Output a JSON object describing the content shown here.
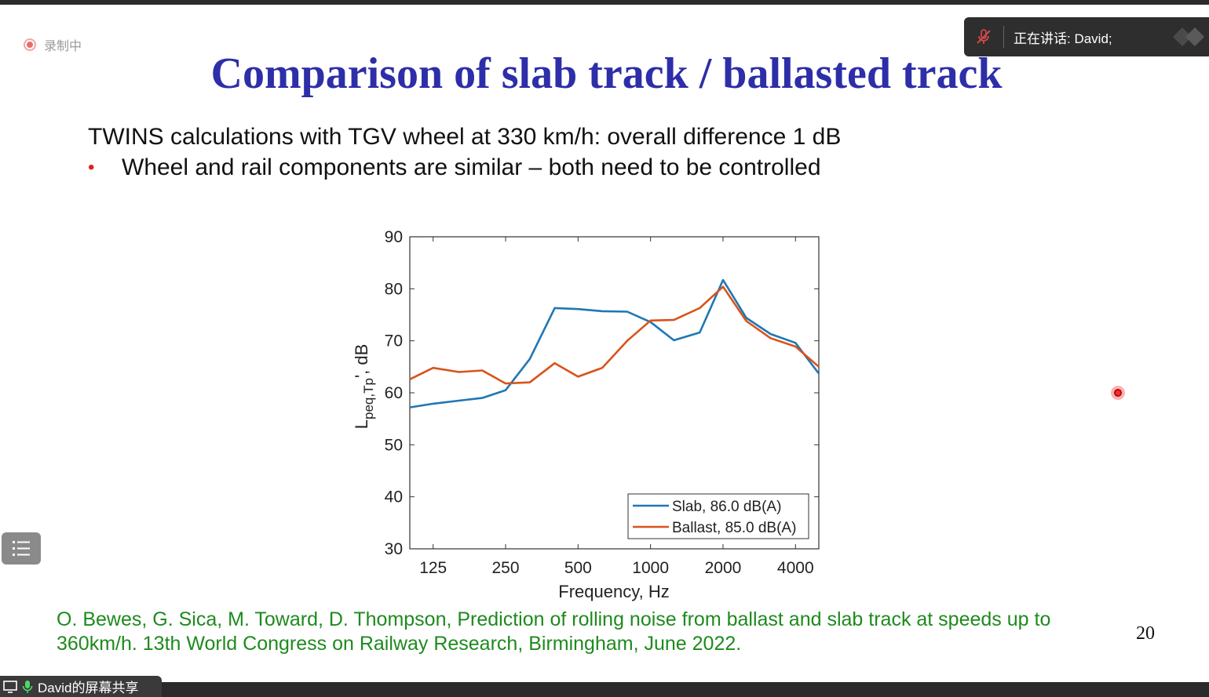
{
  "recording": {
    "label": "录制中"
  },
  "speaker": {
    "text": "正在讲话: David;"
  },
  "slide": {
    "title": "Comparison of slab track / ballasted track",
    "line1": "TWINS calculations with TGV wheel at 330 km/h: overall difference 1 dB",
    "bullet": "Wheel and rail components are similar – both need to be controlled",
    "bullet_mark": "•",
    "reference": "O. Bewes, G. Sica, M. Toward, D. Thompson, Prediction of rolling noise from ballast and slab track at speeds up to 360km/h. 13th World Congress on Railway Research, Birmingham, June 2022.",
    "page_number": "20"
  },
  "share": {
    "label": "David的屏幕共享"
  },
  "chart_data": {
    "type": "line",
    "title": "",
    "xlabel": "Frequency, Hz",
    "ylabel_main": "L",
    "ylabel_sub": "peq,Tp",
    "ylabel_rest": "', dB",
    "xscale": "log",
    "xlim": [
      100,
      5000
    ],
    "ylim": [
      30,
      90
    ],
    "x_ticks": [
      125,
      250,
      500,
      1000,
      2000,
      4000
    ],
    "x_tick_labels": [
      "125",
      "250",
      "500",
      "1000",
      "2000",
      "4000"
    ],
    "y_ticks": [
      30,
      40,
      50,
      60,
      70,
      80,
      90
    ],
    "y_tick_labels": [
      "30",
      "40",
      "50",
      "60",
      "70",
      "80",
      "90"
    ],
    "x": [
      100,
      125,
      160,
      200,
      250,
      315,
      400,
      500,
      630,
      800,
      1000,
      1250,
      1600,
      2000,
      2500,
      3150,
      4000,
      5000
    ],
    "series": [
      {
        "name": "Slab, 86.0 dB(A)",
        "color": "#1f77b4",
        "values": [
          57.2,
          57.9,
          58.5,
          59.0,
          60.5,
          66.5,
          76.3,
          76.1,
          75.7,
          75.6,
          73.6,
          70.1,
          71.6,
          81.7,
          74.4,
          71.3,
          69.6,
          63.7
        ]
      },
      {
        "name": "Ballast, 85.0 dB(A)",
        "color": "#d95319",
        "values": [
          62.6,
          64.8,
          64.0,
          64.3,
          61.8,
          62.0,
          65.7,
          63.1,
          64.8,
          70.0,
          73.9,
          74.0,
          76.3,
          80.4,
          73.8,
          70.5,
          68.9,
          65.0
        ]
      }
    ],
    "legend_position": "bottom-right",
    "grid": false
  }
}
